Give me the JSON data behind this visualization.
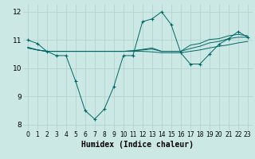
{
  "xlabel": "Humidex (Indice chaleur)",
  "background_color": "#cce8e4",
  "grid_color": "#b0d4ce",
  "line_color": "#006666",
  "xlim": [
    -0.5,
    23.5
  ],
  "ylim": [
    7.8,
    12.25
  ],
  "yticks": [
    8,
    9,
    10,
    11,
    12
  ],
  "xticks": [
    0,
    1,
    2,
    3,
    4,
    5,
    6,
    7,
    8,
    9,
    10,
    11,
    12,
    13,
    14,
    15,
    16,
    17,
    18,
    19,
    20,
    21,
    22,
    23
  ],
  "line1_x": [
    0,
    1,
    2,
    3,
    4,
    5,
    6,
    7,
    8,
    9,
    10,
    11,
    12,
    13,
    14,
    15,
    16,
    17,
    18,
    19,
    20,
    21,
    22,
    23
  ],
  "line1_y": [
    11.0,
    10.88,
    10.6,
    10.45,
    10.45,
    9.55,
    8.5,
    8.2,
    8.55,
    9.35,
    10.45,
    10.45,
    11.65,
    11.75,
    12.0,
    11.55,
    10.55,
    10.15,
    10.15,
    10.5,
    10.85,
    11.05,
    11.3,
    11.1
  ],
  "line2_x": [
    0,
    1,
    2,
    3,
    4,
    5,
    6,
    7,
    8,
    9,
    10,
    11,
    12,
    13,
    14,
    15,
    16,
    17,
    18,
    19,
    20,
    21,
    22,
    23
  ],
  "line2_y": [
    10.75,
    10.65,
    10.6,
    10.6,
    10.6,
    10.6,
    10.6,
    10.6,
    10.6,
    10.6,
    10.6,
    10.6,
    10.6,
    10.58,
    10.55,
    10.55,
    10.55,
    10.6,
    10.65,
    10.72,
    10.78,
    10.83,
    10.9,
    10.95
  ],
  "line3_x": [
    0,
    1,
    2,
    3,
    4,
    5,
    6,
    7,
    8,
    9,
    10,
    11,
    12,
    13,
    14,
    15,
    16,
    17,
    18,
    19,
    20,
    21,
    22,
    23
  ],
  "line3_y": [
    10.72,
    10.65,
    10.6,
    10.6,
    10.6,
    10.6,
    10.6,
    10.6,
    10.6,
    10.6,
    10.6,
    10.62,
    10.65,
    10.68,
    10.6,
    10.6,
    10.6,
    10.7,
    10.78,
    10.9,
    10.95,
    11.05,
    11.1,
    11.1
  ],
  "line4_x": [
    0,
    1,
    2,
    3,
    4,
    5,
    6,
    7,
    8,
    9,
    10,
    11,
    12,
    13,
    14,
    15,
    16,
    17,
    18,
    19,
    20,
    21,
    22,
    23
  ],
  "line4_y": [
    10.72,
    10.65,
    10.6,
    10.6,
    10.6,
    10.6,
    10.6,
    10.6,
    10.6,
    10.6,
    10.6,
    10.62,
    10.67,
    10.72,
    10.6,
    10.6,
    10.6,
    10.82,
    10.88,
    11.02,
    11.05,
    11.15,
    11.2,
    11.15
  ]
}
